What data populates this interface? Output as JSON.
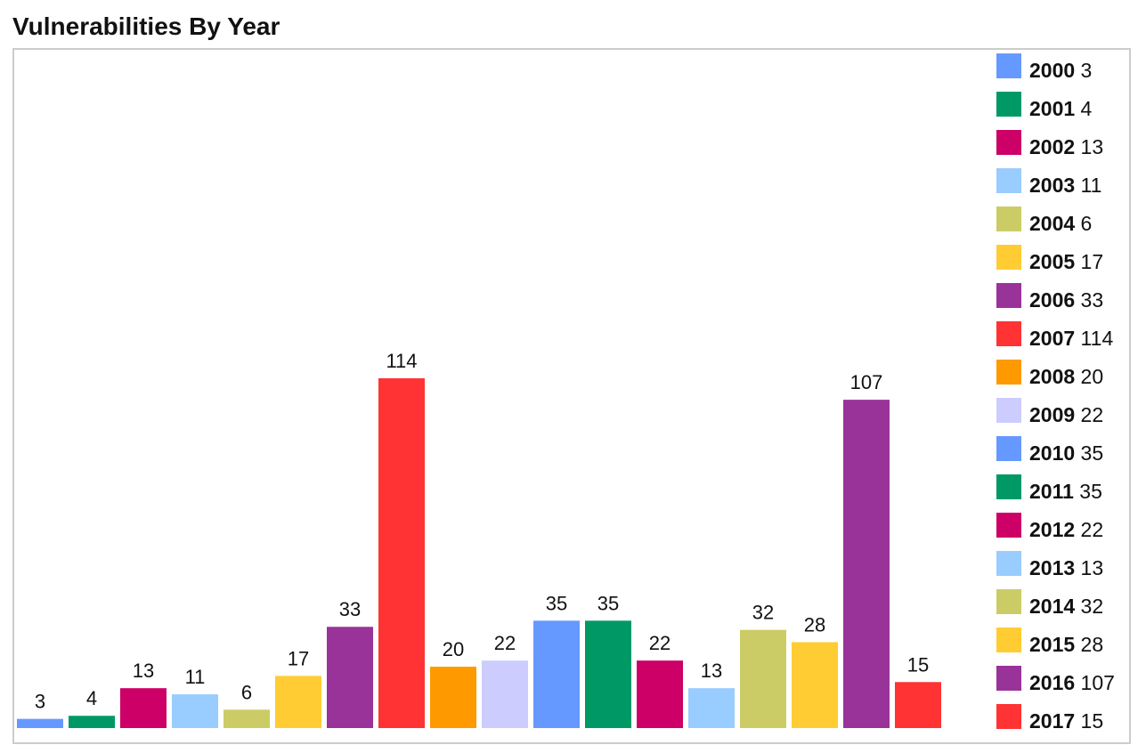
{
  "title": "Vulnerabilities By Year",
  "chart_data": {
    "type": "bar",
    "title": "Vulnerabilities By Year",
    "categories": [
      "2000",
      "2001",
      "2002",
      "2003",
      "2004",
      "2005",
      "2006",
      "2007",
      "2008",
      "2009",
      "2010",
      "2011",
      "2012",
      "2013",
      "2014",
      "2015",
      "2016",
      "2017"
    ],
    "values": [
      3,
      4,
      13,
      11,
      6,
      17,
      33,
      114,
      20,
      22,
      35,
      35,
      22,
      13,
      32,
      28,
      107,
      15
    ],
    "colors": [
      "#6699ff",
      "#009966",
      "#cc0066",
      "#99ccff",
      "#cccc66",
      "#ffcc33",
      "#993399",
      "#ff3333",
      "#ff9900",
      "#ccccff",
      "#6699ff",
      "#009966",
      "#cc0066",
      "#99ccff",
      "#cccc66",
      "#ffcc33",
      "#993399",
      "#ff3333"
    ],
    "ylim": [
      0,
      114
    ],
    "grid": false,
    "legend_position": "right",
    "data_labels": true
  }
}
